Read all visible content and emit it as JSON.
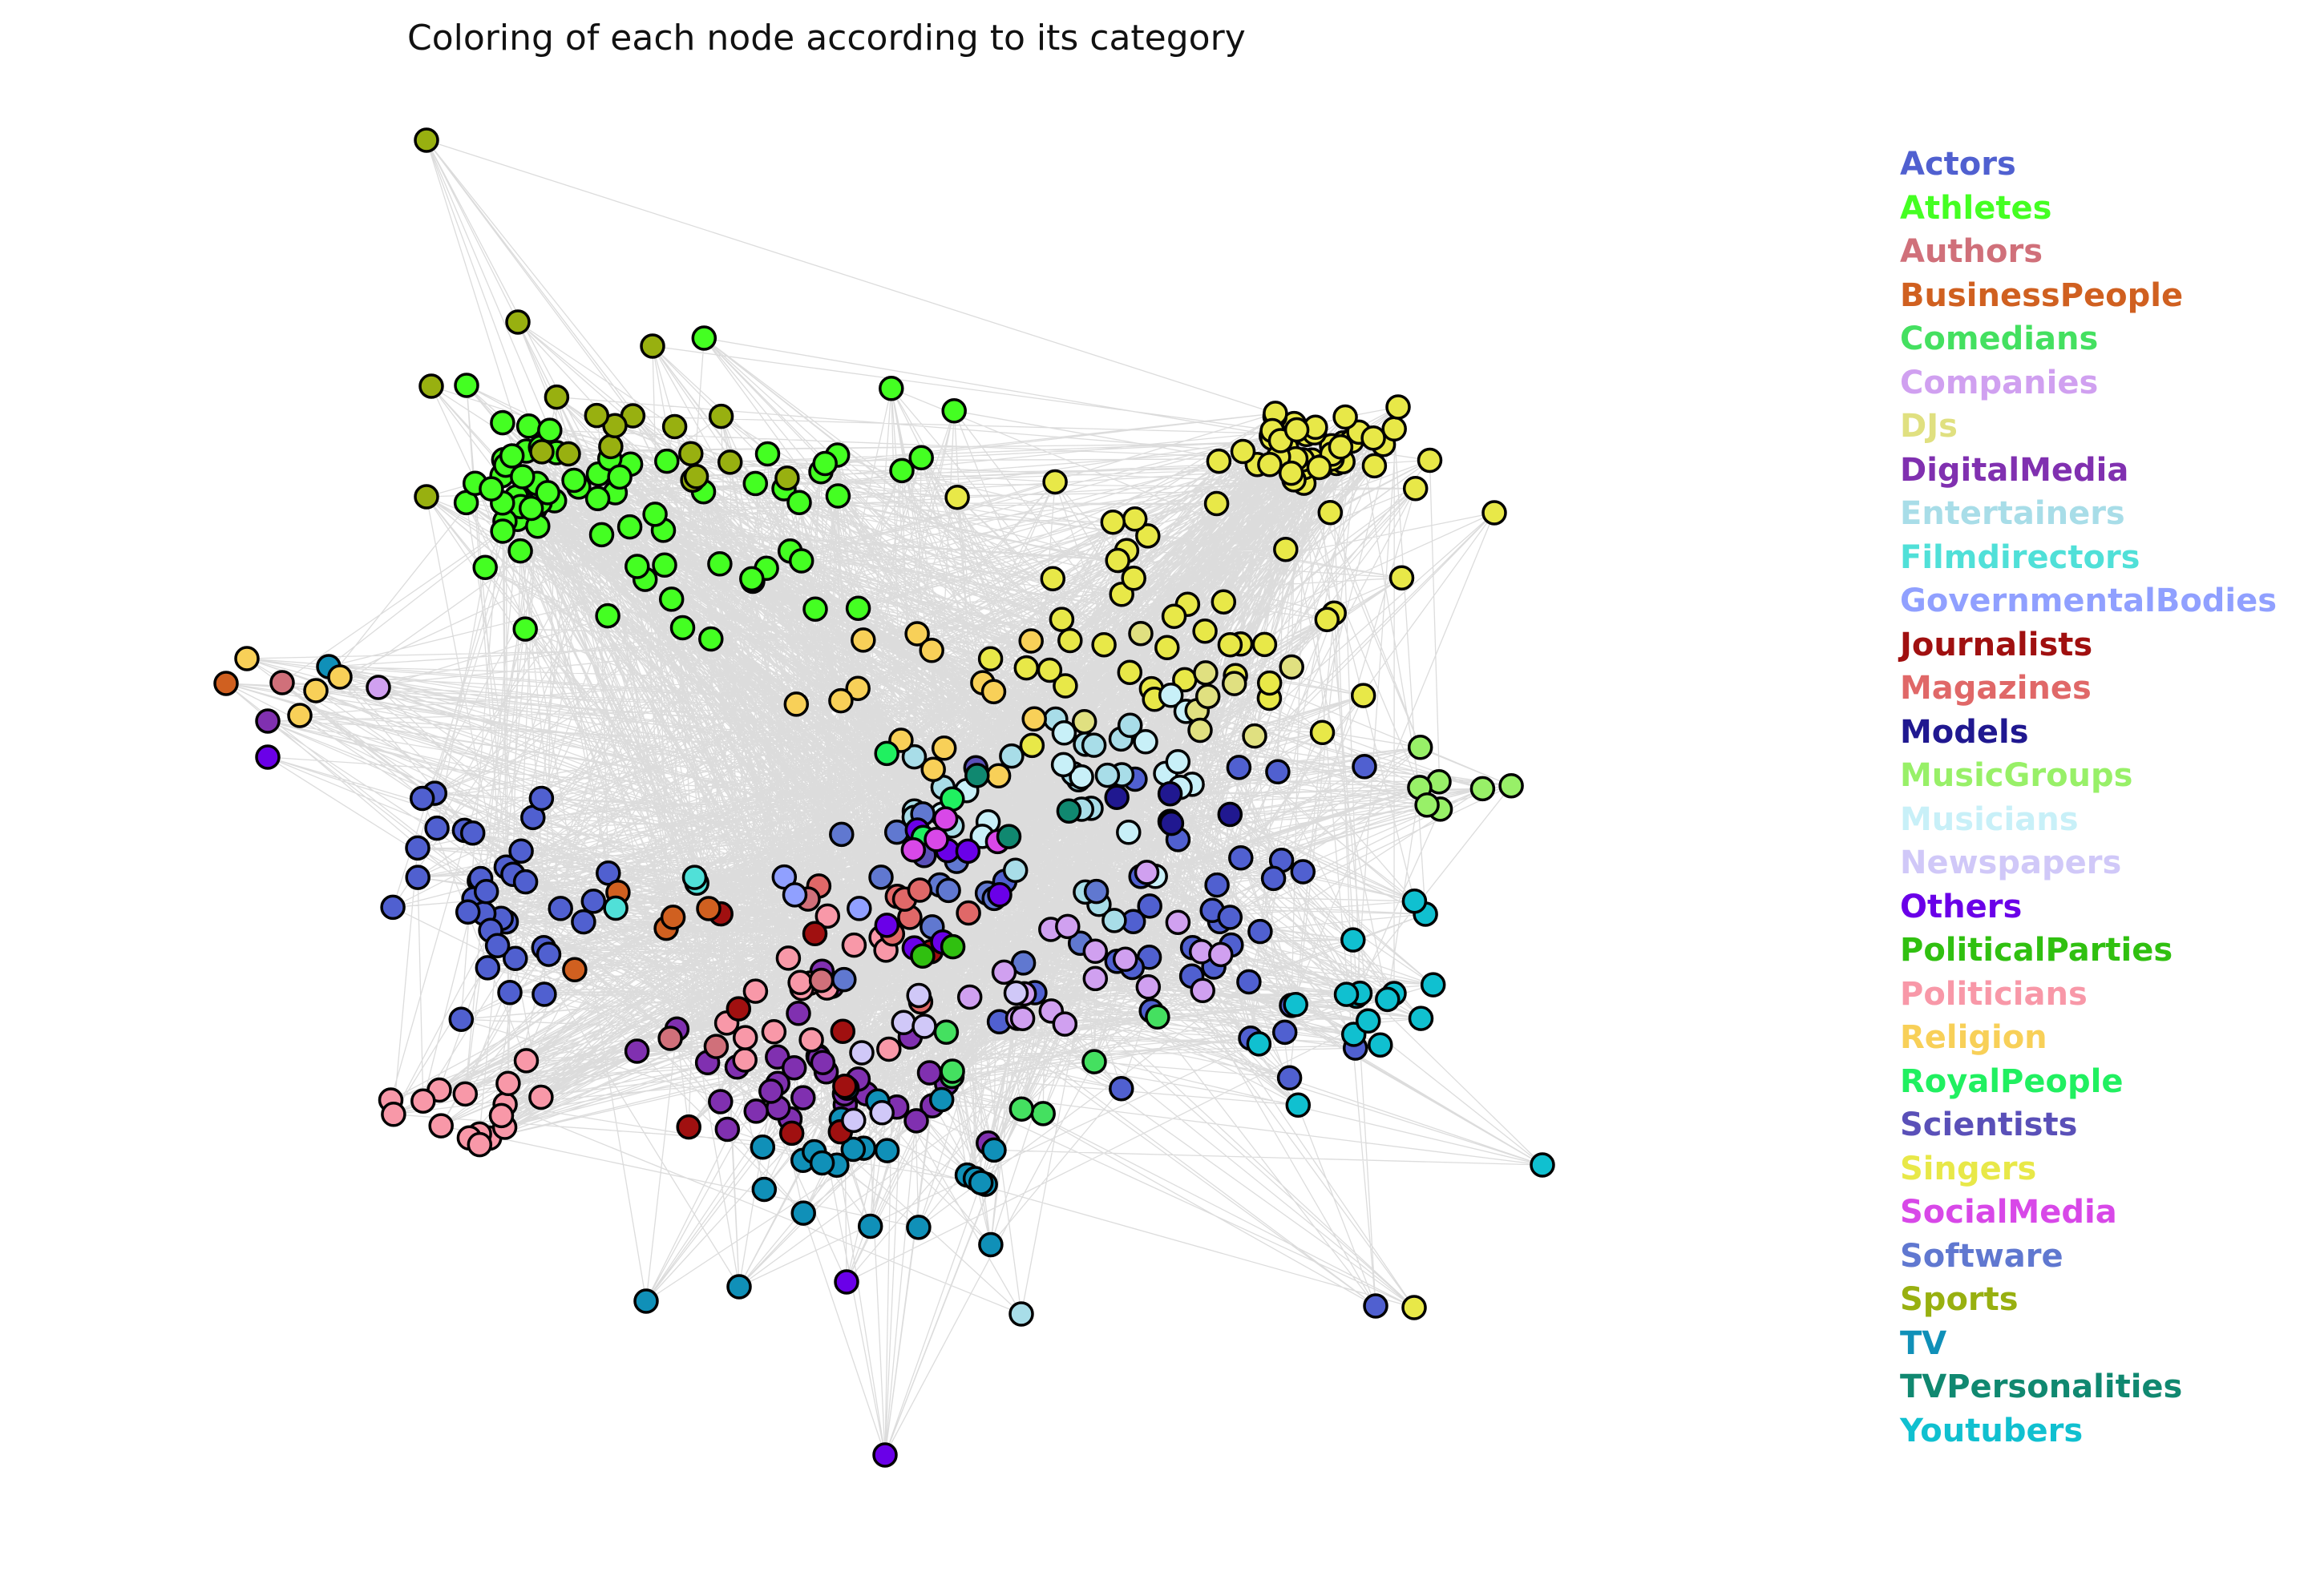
{
  "title": "Coloring of each node according to its category",
  "edge_color": "#808080",
  "node_stroke": "#000000",
  "categories": [
    {
      "name": "Actors",
      "color": "#5060d0"
    },
    {
      "name": "Athletes",
      "color": "#44ff22"
    },
    {
      "name": "Authors",
      "color": "#d0707a"
    },
    {
      "name": "BusinessPeople",
      "color": "#d06020"
    },
    {
      "name": "Comedians",
      "color": "#44e060"
    },
    {
      "name": "Companies",
      "color": "#d0a0f0"
    },
    {
      "name": "DJs",
      "color": "#e0e080"
    },
    {
      "name": "DigitalMedia",
      "color": "#8030b0"
    },
    {
      "name": "Entertainers",
      "color": "#a8dde8"
    },
    {
      "name": "Filmdirectors",
      "color": "#50e0d8"
    },
    {
      "name": "GovernmentalBodies",
      "color": "#90a0ff"
    },
    {
      "name": "Journalists",
      "color": "#a01010"
    },
    {
      "name": "Magazines",
      "color": "#e06868"
    },
    {
      "name": "Models",
      "color": "#201890"
    },
    {
      "name": "MusicGroups",
      "color": "#98f068"
    },
    {
      "name": "Musicians",
      "color": "#c8f0f8"
    },
    {
      "name": "Newspapers",
      "color": "#d0c8f8"
    },
    {
      "name": "Others",
      "color": "#6a00e8"
    },
    {
      "name": "PoliticalParties",
      "color": "#30c010"
    },
    {
      "name": "Politicians",
      "color": "#f898a8"
    },
    {
      "name": "Religion",
      "color": "#f8d058"
    },
    {
      "name": "RoyalPeople",
      "color": "#20f060"
    },
    {
      "name": "Scientists",
      "color": "#5a50b8"
    },
    {
      "name": "Singers",
      "color": "#e8e848"
    },
    {
      "name": "SocialMedia",
      "color": "#d848e8"
    },
    {
      "name": "Software",
      "color": "#6078d0"
    },
    {
      "name": "Sports",
      "color": "#98b010"
    },
    {
      "name": "TV",
      "color": "#1090b8"
    },
    {
      "name": "TVPersonalities",
      "color": "#108870"
    },
    {
      "name": "Youtubers",
      "color": "#10c0d0"
    }
  ]
}
